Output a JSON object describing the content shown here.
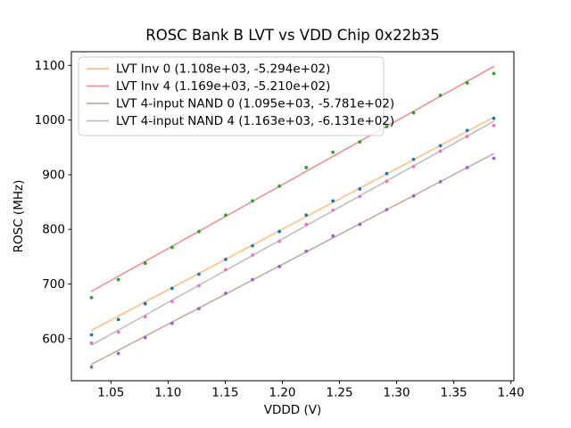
{
  "figure": {
    "title": "ROSC Bank B LVT vs VDD Chip 0x22b35",
    "xlabel": "VDDD (V)",
    "ylabel": "ROSC (MHz)"
  },
  "chart_data": {
    "type": "scatter",
    "title": "ROSC Bank B LVT vs VDD Chip 0x22b35",
    "xlabel": "VDDD (V)",
    "ylabel": "ROSC (MHz)",
    "xlim": [
      1.0154,
      1.4026
    ],
    "ylim": [
      523,
      1125
    ],
    "xticks": [
      1.05,
      1.1,
      1.15,
      1.2,
      1.25,
      1.3,
      1.35,
      1.4
    ],
    "xtick_labels": [
      "1.05",
      "1.10",
      "1.15",
      "1.20",
      "1.25",
      "1.30",
      "1.35",
      "1.40"
    ],
    "yticks": [
      600,
      700,
      800,
      900,
      1000,
      1100
    ],
    "ytick_labels": [
      "600",
      "700",
      "800",
      "900",
      "1000",
      "1100"
    ],
    "grid": false,
    "legend_position": "upper left",
    "x": [
      1.033,
      1.0565,
      1.08,
      1.1035,
      1.127,
      1.1504,
      1.1739,
      1.1974,
      1.2209,
      1.2443,
      1.2678,
      1.2913,
      1.3148,
      1.3383,
      1.3617,
      1.385
    ],
    "series": [
      {
        "name": "LVT Inv 0",
        "legend_label": "LVT Inv 0 (1.108e+03, -5.294e+02)",
        "fit": {
          "slope": 1108,
          "intercept": -529.4
        },
        "line_color": "#ffbf86",
        "scatter_color": "#1f77b4",
        "y": [
          607,
          635,
          664,
          692,
          718,
          745,
          770,
          796,
          826,
          852,
          874,
          902,
          928,
          953,
          981,
          1003
        ]
      },
      {
        "name": "LVT Inv 4",
        "legend_label": "LVT Inv 4 (1.169e+03, -5.210e+02)",
        "fit": {
          "slope": 1169,
          "intercept": -521.0
        },
        "line_color": "#ea9393",
        "scatter_color": "#2ca02c",
        "y": [
          675,
          708,
          738,
          767,
          796,
          826,
          852,
          879,
          913,
          941,
          960,
          988,
          1013,
          1045,
          1068,
          1085
        ]
      },
      {
        "name": "LVT 4-input NAND 0",
        "legend_label": "LVT 4-input NAND 0 (1.095e+03, -5.781e+02)",
        "fit": {
          "slope": 1095,
          "intercept": -578.1
        },
        "line_color": "#c5aaa5",
        "scatter_color": "#9467bd",
        "y": [
          548,
          573,
          602,
          628,
          655,
          683,
          708,
          732,
          760,
          788,
          809,
          836,
          861,
          887,
          913,
          930
        ]
      },
      {
        "name": "LVT 4-input NAND 4",
        "legend_label": "LVT 4-input NAND 4 (1.163e+03, -6.131e+02)",
        "fit": {
          "slope": 1163,
          "intercept": -613.1
        },
        "line_color": "#bfbfbf",
        "scatter_color": "#e377c2",
        "y": [
          592,
          612,
          640,
          668,
          697,
          726,
          753,
          778,
          809,
          835,
          860,
          888,
          915,
          943,
          970,
          990
        ]
      }
    ]
  }
}
